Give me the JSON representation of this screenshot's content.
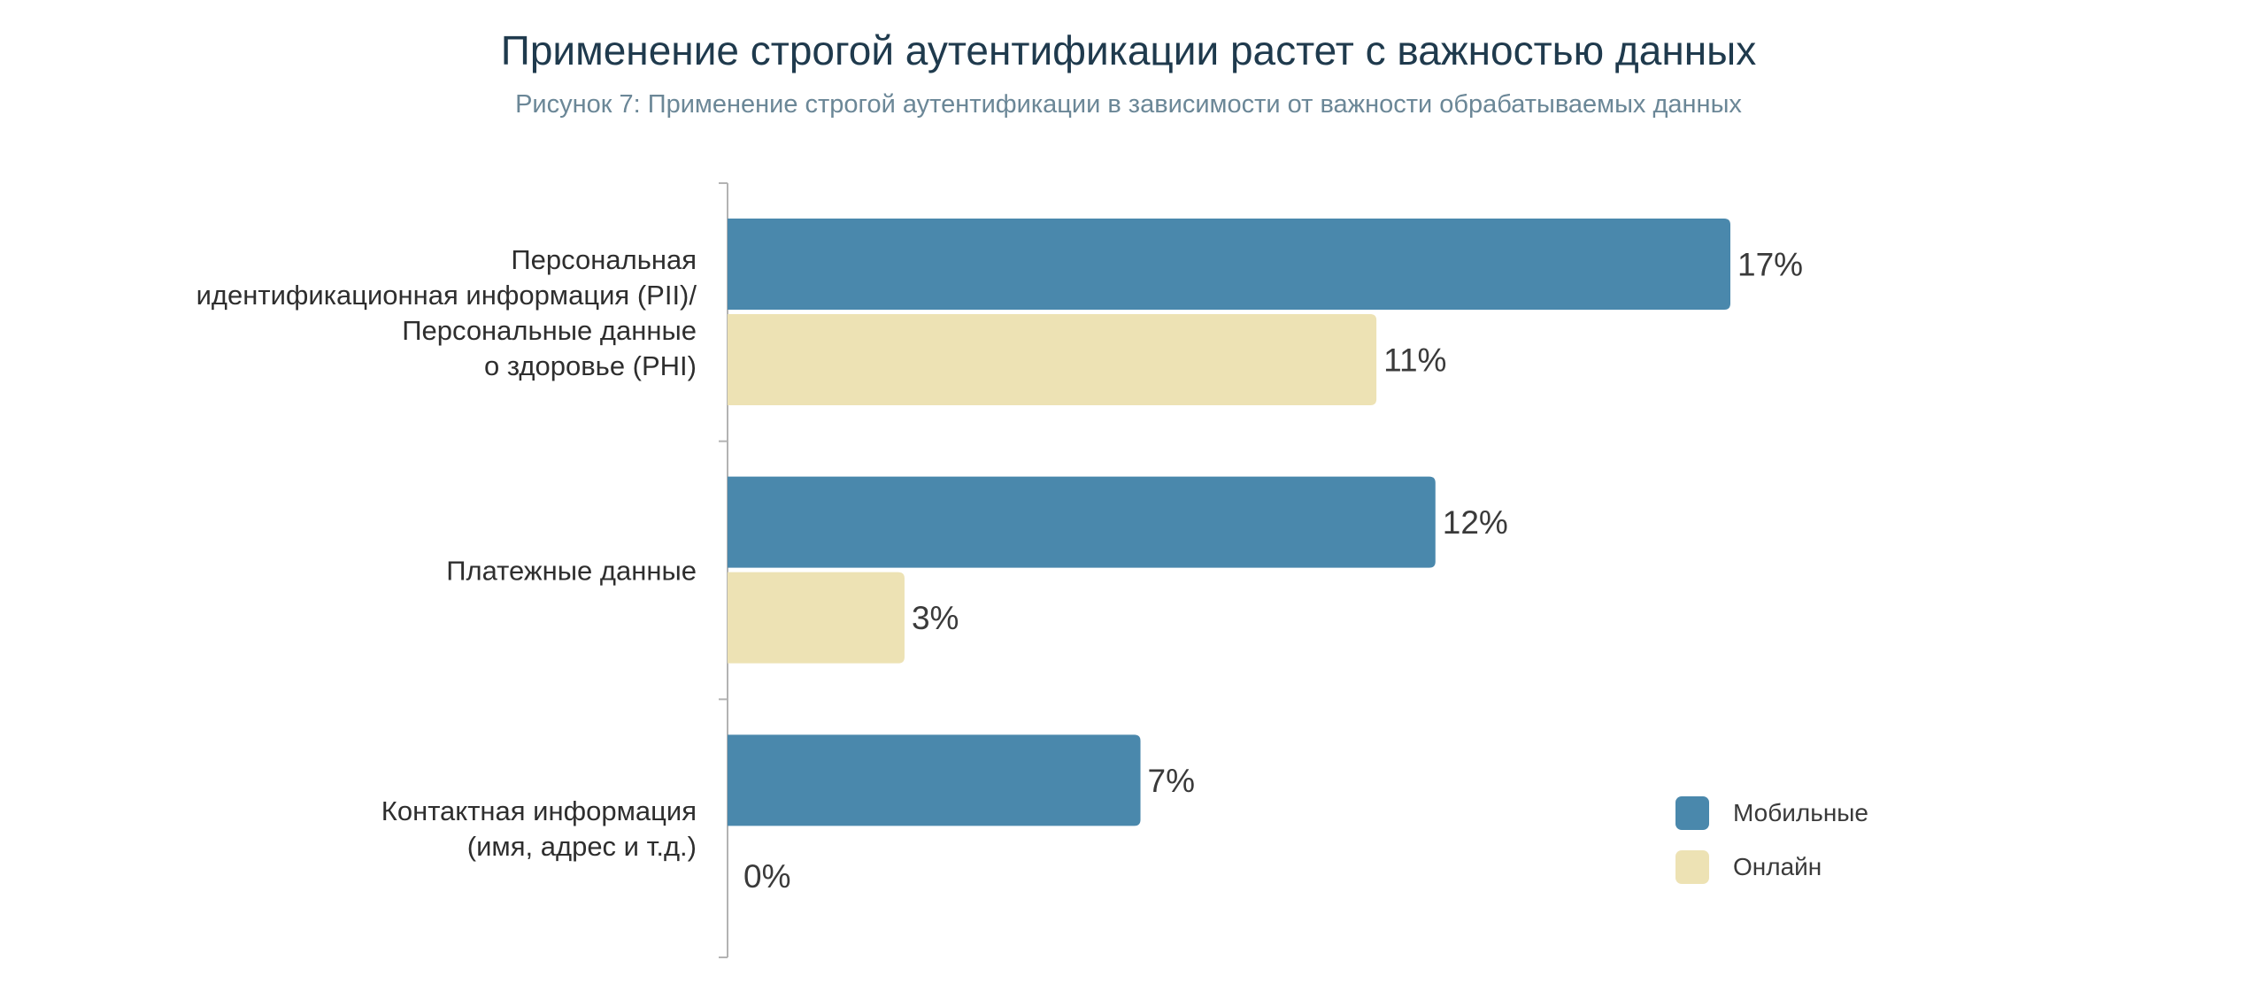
{
  "chart_data": {
    "type": "bar",
    "orientation": "horizontal",
    "title": "Применение строгой аутентификации растет с важностью данных",
    "subtitle": "Рисунок 7: Применение строгой аутентификации в зависимости от важности обрабатываемых данных",
    "categories": [
      [
        "Персональная",
        "идентификационная информация (PII)/",
        "Персональные данные",
        "о здоровье (PHI)"
      ],
      [
        "Платежные данные"
      ],
      [
        "Контактная информация",
        "(имя, адрес и т.д.)"
      ]
    ],
    "series": [
      {
        "name": "Мобильные",
        "color": "#4a88ac",
        "values": [
          17,
          12,
          7
        ],
        "labels": [
          "17%",
          "12%",
          "7%"
        ]
      },
      {
        "name": "Онлайн",
        "color": "#ede2b4",
        "values": [
          11,
          3,
          0
        ],
        "labels": [
          "11%",
          "3%",
          "0%"
        ]
      }
    ],
    "xlim": [
      0,
      20
    ],
    "xlabel": "",
    "ylabel": "",
    "grid": false,
    "legend_position": "bottom-right"
  }
}
